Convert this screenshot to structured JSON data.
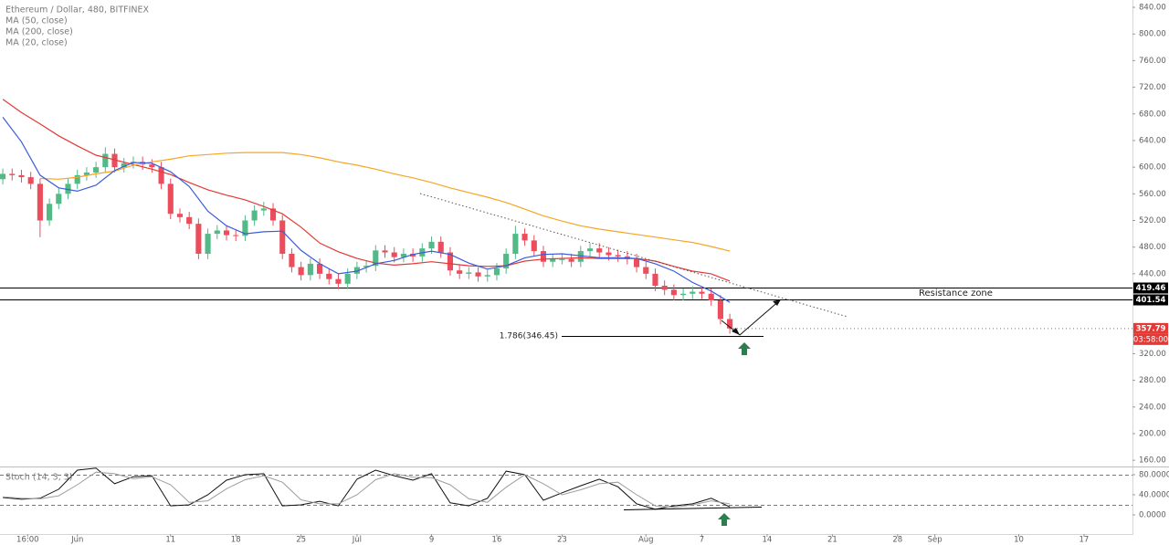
{
  "chart_data": {
    "type": "candlestick",
    "title": "Ethereum / Dollar, 480, BITFINEX",
    "x": [
      144,
      145,
      146,
      147,
      148,
      149,
      150,
      151,
      152,
      153,
      154,
      155,
      156,
      157,
      158,
      159,
      160,
      161,
      162,
      163,
      164,
      165,
      166,
      167,
      168,
      169,
      170,
      171,
      172,
      173,
      174,
      175,
      176,
      177,
      178,
      179,
      180,
      181,
      182,
      183,
      184,
      185,
      186,
      187,
      188,
      189,
      190,
      191,
      192,
      193,
      194,
      195,
      196,
      197,
      198,
      199,
      200,
      201,
      202,
      203,
      204,
      205,
      206,
      207,
      208,
      209,
      210,
      211,
      212,
      213,
      214,
      215,
      216,
      217,
      218,
      219,
      220,
      221,
      222
    ],
    "open": [
      582,
      590,
      588,
      585,
      575,
      520,
      545,
      560,
      575,
      588,
      592,
      600,
      620,
      600,
      606,
      608,
      604,
      600,
      575,
      530,
      525,
      515,
      470,
      500,
      505,
      498,
      497,
      520,
      535,
      538,
      520,
      470,
      450,
      438,
      455,
      440,
      432,
      425,
      440,
      450,
      452,
      475,
      472,
      465,
      470,
      466,
      478,
      488,
      472,
      445,
      440,
      442,
      436,
      438,
      448,
      470,
      500,
      490,
      474,
      458,
      462,
      462,
      458,
      474,
      478,
      472,
      468,
      466,
      462,
      450,
      440,
      422,
      416,
      408,
      410,
      413,
      410,
      400,
      372
    ],
    "high": [
      598,
      598,
      596,
      593,
      583,
      553,
      568,
      583,
      596,
      600,
      608,
      630,
      628,
      614,
      616,
      616,
      612,
      608,
      583,
      538,
      533,
      523,
      508,
      513,
      513,
      506,
      528,
      543,
      548,
      546,
      528,
      478,
      458,
      463,
      463,
      448,
      440,
      448,
      458,
      460,
      483,
      483,
      480,
      478,
      478,
      486,
      496,
      496,
      480,
      453,
      450,
      450,
      446,
      456,
      478,
      512,
      508,
      498,
      482,
      470,
      470,
      470,
      482,
      486,
      486,
      480,
      476,
      474,
      470,
      458,
      448,
      430,
      424,
      418,
      421,
      421,
      418,
      408,
      380
    ],
    "low": [
      574,
      580,
      577,
      567,
      495,
      512,
      537,
      552,
      567,
      580,
      584,
      592,
      592,
      592,
      598,
      596,
      592,
      567,
      522,
      517,
      507,
      462,
      462,
      492,
      490,
      489,
      489,
      512,
      527,
      512,
      462,
      442,
      430,
      430,
      432,
      424,
      417,
      417,
      432,
      442,
      444,
      464,
      457,
      457,
      458,
      458,
      470,
      464,
      437,
      432,
      432,
      428,
      428,
      430,
      440,
      462,
      482,
      466,
      450,
      450,
      454,
      450,
      450,
      466,
      464,
      460,
      458,
      454,
      442,
      432,
      414,
      408,
      400,
      400,
      402,
      402,
      392,
      364,
      350
    ],
    "close": [
      590,
      588,
      585,
      575,
      520,
      545,
      560,
      575,
      588,
      592,
      600,
      620,
      600,
      606,
      608,
      604,
      600,
      575,
      530,
      525,
      515,
      470,
      500,
      505,
      498,
      497,
      520,
      535,
      538,
      520,
      470,
      450,
      438,
      455,
      440,
      432,
      425,
      440,
      450,
      452,
      475,
      472,
      465,
      470,
      466,
      478,
      488,
      472,
      445,
      440,
      442,
      436,
      438,
      448,
      470,
      500,
      490,
      474,
      458,
      462,
      462,
      458,
      474,
      478,
      472,
      468,
      466,
      462,
      450,
      440,
      422,
      416,
      408,
      410,
      413,
      410,
      400,
      372,
      357.79
    ],
    "up_color": "#53b987",
    "down_color": "#eb4d5c",
    "overlays": [
      {
        "name": "MA (50, close)",
        "color": "#e53935",
        "x": [
          144,
          146,
          148,
          150,
          152,
          154,
          156,
          158,
          160,
          162,
          164,
          166,
          168,
          170,
          172,
          174,
          176,
          178,
          180,
          182,
          184,
          186,
          188,
          190,
          192,
          194,
          196,
          198,
          200,
          202,
          204,
          206,
          208,
          210,
          212,
          214,
          216,
          218,
          220,
          222
        ],
        "values": [
          702,
          682,
          665,
          647,
          632,
          618,
          611,
          604,
          597,
          589,
          577,
          566,
          558,
          551,
          541,
          530,
          510,
          486,
          473,
          463,
          456,
          453,
          455,
          458,
          455,
          452,
          451,
          452,
          459,
          462,
          463,
          464,
          463,
          463,
          463,
          459,
          451,
          444,
          440,
          429
        ]
      },
      {
        "name": "MA (200, close)",
        "color": "#f5a623",
        "x": [
          148,
          150,
          152,
          154,
          156,
          158,
          160,
          162,
          164,
          166,
          168,
          170,
          172,
          174,
          176,
          178,
          180,
          182,
          184,
          186,
          188,
          190,
          192,
          194,
          196,
          198,
          200,
          202,
          204,
          206,
          208,
          210,
          212,
          214,
          216,
          218,
          220,
          222
        ],
        "values": [
          583,
          582,
          585,
          590,
          594,
          603,
          608,
          612,
          617,
          619,
          621,
          622,
          622,
          622,
          619,
          614,
          608,
          603,
          597,
          590,
          584,
          577,
          569,
          562,
          555,
          547,
          537,
          527,
          519,
          512,
          507,
          503,
          499,
          495,
          491,
          487,
          481,
          474
        ]
      },
      {
        "name": "MA (20, close)",
        "color": "#3b5bdb",
        "x": [
          144,
          146,
          148,
          150,
          152,
          154,
          156,
          158,
          160,
          162,
          164,
          166,
          168,
          170,
          172,
          174,
          176,
          178,
          180,
          182,
          184,
          186,
          188,
          190,
          192,
          194,
          196,
          198,
          200,
          202,
          204,
          206,
          208,
          210,
          212,
          214,
          216,
          218,
          220,
          222
        ],
        "values": [
          675,
          638,
          588,
          569,
          564,
          573,
          595,
          607,
          606,
          593,
          571,
          534,
          512,
          500,
          503,
          504,
          475,
          455,
          440,
          444,
          455,
          460,
          469,
          474,
          469,
          456,
          447,
          452,
          464,
          469,
          470,
          467,
          464,
          464,
          463,
          455,
          444,
          427,
          414,
          397
        ]
      }
    ],
    "xlim": [
      143.7,
      265.2
    ],
    "xticks": [
      {
        "value": 146.67,
        "label": "16:00"
      },
      {
        "value": 152,
        "label": "Jun"
      },
      {
        "value": 162,
        "label": "11"
      },
      {
        "value": 169,
        "label": "18"
      },
      {
        "value": 176,
        "label": "25"
      },
      {
        "value": 182,
        "label": "Jul"
      },
      {
        "value": 190,
        "label": "9"
      },
      {
        "value": 197,
        "label": "16"
      },
      {
        "value": 204,
        "label": "23"
      },
      {
        "value": 213,
        "label": "Aug"
      },
      {
        "value": 219,
        "label": "7"
      },
      {
        "value": 226,
        "label": "14"
      },
      {
        "value": 233,
        "label": "21"
      },
      {
        "value": 240,
        "label": "28"
      },
      {
        "value": 244,
        "label": "Sep"
      },
      {
        "value": 253,
        "label": "10"
      },
      {
        "value": 260,
        "label": "17"
      }
    ],
    "ylim": [
      152,
      851
    ],
    "yticks": [
      {
        "value": 160,
        "label": "160.00"
      },
      {
        "value": 200,
        "label": "200.00"
      },
      {
        "value": 240,
        "label": "240.00"
      },
      {
        "value": 280,
        "label": "280.00"
      },
      {
        "value": 320,
        "label": "320.00"
      },
      {
        "value": 440,
        "label": "440.00"
      },
      {
        "value": 480,
        "label": "480.00"
      },
      {
        "value": 520,
        "label": "520.00"
      },
      {
        "value": 560,
        "label": "560.00"
      },
      {
        "value": 600,
        "label": "600.00"
      },
      {
        "value": 640,
        "label": "640.00"
      },
      {
        "value": 680,
        "label": "680.00"
      },
      {
        "value": 720,
        "label": "720.00"
      },
      {
        "value": 760,
        "label": "760.00"
      },
      {
        "value": 800,
        "label": "800.00"
      },
      {
        "value": 840,
        "label": "840.00"
      }
    ],
    "levels": [
      419.46,
      401.54
    ],
    "level_color": "#000000",
    "last_price": 357.79,
    "last_price_color": "#e53935",
    "countdown": "03:58:00",
    "annotations": [
      "1.786(346.45)",
      "Resistance zone"
    ],
    "indicator": {
      "type": "line",
      "title": "Stoch (14, 3, 3)",
      "x": [
        144,
        146,
        148,
        150,
        152,
        154,
        156,
        158,
        160,
        162,
        164,
        166,
        168,
        170,
        172,
        174,
        176,
        178,
        180,
        182,
        184,
        186,
        188,
        190,
        192,
        194,
        196,
        198,
        200,
        202,
        204,
        206,
        208,
        210,
        212,
        214,
        216,
        218,
        220,
        222
      ],
      "series": [
        {
          "color": "#111111",
          "values": [
            34.5,
            31,
            33,
            51,
            89,
            93,
            62,
            76,
            78,
            18,
            20,
            40,
            69,
            80,
            82,
            18,
            20,
            27,
            18,
            71,
            89,
            78,
            69,
            82,
            24,
            18,
            33,
            87,
            80,
            29,
            44,
            58,
            71,
            56,
            22,
            11,
            18,
            22,
            33,
            16
          ]
        },
        {
          "color": "#9e9e9e",
          "values": [
            36,
            33,
            32,
            38,
            60,
            85,
            82,
            72,
            76,
            60,
            25,
            28,
            52,
            70,
            78,
            65,
            30,
            22,
            22,
            40,
            70,
            82,
            75,
            74,
            60,
            32,
            25,
            55,
            80,
            62,
            40,
            50,
            62,
            65,
            40,
            18,
            15,
            20,
            28,
            22
          ]
        }
      ],
      "bands": [
        80,
        20
      ],
      "ylim": [
        -36.4,
        94.5
      ],
      "yticks": [
        {
          "value": 80,
          "label": "80.0000"
        },
        {
          "value": 40,
          "label": "40.0000"
        },
        {
          "value": 0,
          "label": "0.0000"
        }
      ]
    }
  }
}
